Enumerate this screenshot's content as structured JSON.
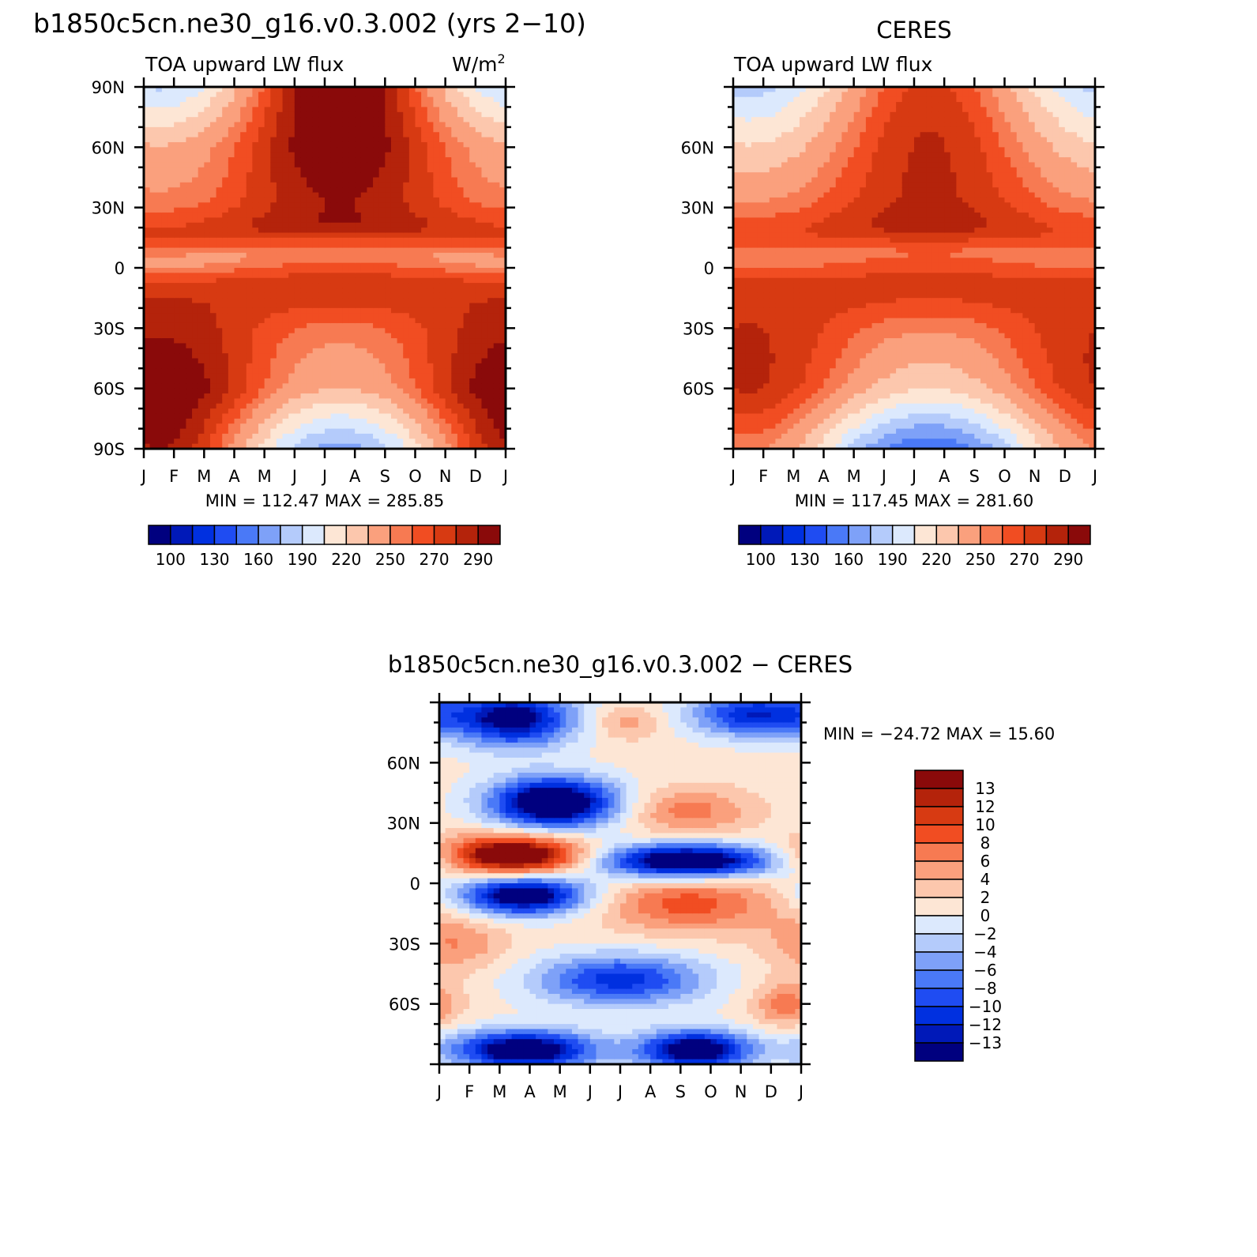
{
  "colors": {
    "flux_palette": [
      "#00007f",
      "#0019b8",
      "#0030e0",
      "#1f4cf2",
      "#4a79f7",
      "#7ea1f8",
      "#b4cbfb",
      "#dce9fd",
      "#fde6d5",
      "#fcc7ad",
      "#faa07d",
      "#f77a52",
      "#f14d22",
      "#d73a12",
      "#b4230b",
      "#8a0a0a"
    ],
    "diff_palette": [
      "#00007f",
      "#0019b8",
      "#0030e0",
      "#1f4cf2",
      "#4a79f7",
      "#7ea1f8",
      "#b4cbfb",
      "#dce9fd",
      "#fde6d5",
      "#fcc7ad",
      "#faa07d",
      "#f77a52",
      "#f14d22",
      "#d73a12",
      "#b4230b",
      "#8a0a0a"
    ]
  },
  "figure": {
    "main_title": "b1850c5cn.ne30_g16.v0.3.002 (yrs 2−10)",
    "months": [
      "J",
      "F",
      "M",
      "A",
      "M",
      "J",
      "J",
      "A",
      "S",
      "O",
      "N",
      "D",
      "J"
    ]
  },
  "chart_data": [
    {
      "type": "heatmap",
      "id": "model",
      "title": "",
      "left_label": "TOA upward LW flux",
      "units_base": "W/m",
      "units_sup": "2",
      "yticks": [
        "90N",
        "60N",
        "30N",
        "0",
        "30S",
        "60S",
        "90S"
      ],
      "stats": "MIN = 112.47 MAX = 285.85",
      "colorbar_labels": [
        "100",
        "130",
        "160",
        "190",
        "220",
        "250",
        "270",
        "290"
      ],
      "levels": [
        100,
        115,
        130,
        145,
        160,
        175,
        190,
        205,
        220,
        235,
        250,
        260,
        270,
        280,
        290
      ],
      "x_range": [
        0,
        12
      ],
      "y_range": [
        -90,
        90
      ],
      "field": "model"
    },
    {
      "type": "heatmap",
      "id": "ceres",
      "title": "CERES",
      "left_label": "TOA upward LW flux",
      "yticks": [
        "60N",
        "30N",
        "0",
        "30S",
        "60S"
      ],
      "stats": "MIN = 117.45 MAX = 281.60",
      "colorbar_labels": [
        "100",
        "130",
        "160",
        "190",
        "220",
        "250",
        "270",
        "290"
      ],
      "levels": [
        100,
        115,
        130,
        145,
        160,
        175,
        190,
        205,
        220,
        235,
        250,
        260,
        270,
        280,
        290
      ],
      "x_range": [
        0,
        12
      ],
      "y_range": [
        -90,
        90
      ],
      "field": "ceres"
    },
    {
      "type": "heatmap",
      "id": "diff",
      "title": "b1850c5cn.ne30_g16.v0.3.002 − CERES",
      "yticks": [
        "60N",
        "30N",
        "0",
        "30S",
        "60S"
      ],
      "stats": "MIN = −24.72 MAX =   15.60",
      "colorbar_labels": [
        "13",
        "12",
        "10",
        "8",
        "6",
        "4",
        "2",
        "0",
        "−2",
        "−4",
        "−6",
        "−8",
        "−10",
        "−12",
        "−13"
      ],
      "levels": [
        -13,
        -12,
        -10,
        -8,
        -6,
        -4,
        -2,
        0,
        2,
        4,
        6,
        8,
        10,
        12,
        13
      ],
      "x_range": [
        0,
        12
      ],
      "y_range": [
        -90,
        90
      ],
      "field": "diff"
    }
  ]
}
